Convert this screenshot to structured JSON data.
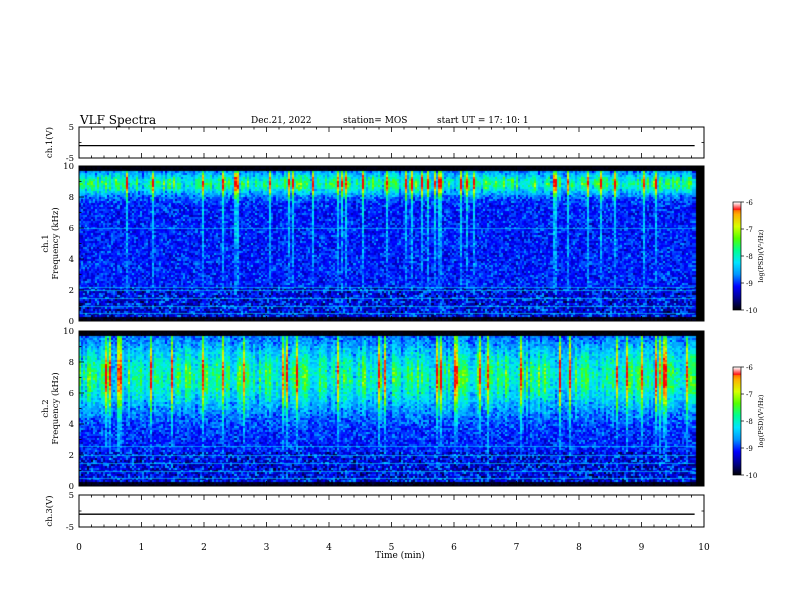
{
  "header": {
    "title": "VLF Spectra",
    "date": "Dec.21, 2022",
    "station": "station= MOS",
    "start_ut": "start  UT =   17: 10: 1"
  },
  "colors": {
    "colormap": [
      "#000000",
      "#00008b",
      "#0000ff",
      "#0096ff",
      "#00e5ff",
      "#00ff90",
      "#55ff00",
      "#d8ff00",
      "#ffb000",
      "#ff0000",
      "#ffffff"
    ],
    "trace": "#000000",
    "harmonic_lines": "#00e5ff"
  },
  "chart_data": [
    {
      "name": "ch1-voltage",
      "type": "line",
      "ylabel": "ch.1(V)",
      "ylim": [
        -5,
        5
      ],
      "yticks": [
        "5",
        "-5"
      ],
      "x": [
        0,
        9.85
      ],
      "y": [
        -1,
        -1
      ]
    },
    {
      "name": "ch1-spectrogram",
      "type": "heatmap",
      "ylabel_line1": "ch.1",
      "ylabel_line2": "Frequency (kHz)",
      "ylim": [
        0,
        10
      ],
      "yticks": [
        "0",
        "2",
        "4",
        "6",
        "8",
        "10"
      ],
      "xlim": [
        0,
        10
      ],
      "data_extent_min": 9.85,
      "band_center_khz": 8.8,
      "band_halfwidth_khz": 0.5,
      "harmonic_lines_khz": [
        0.5,
        1.0,
        1.5,
        2.0,
        2.2,
        6.0
      ],
      "colorbar": {
        "label": "log(PSD)(V²/Hz)",
        "ticks": [
          "-6",
          "-7",
          "-8",
          "-9",
          "-10"
        ],
        "range": [
          -10,
          -6
        ]
      }
    },
    {
      "name": "ch2-spectrogram",
      "type": "heatmap",
      "ylabel_line1": "ch.2",
      "ylabel_line2": "Frequency (kHz)",
      "ylim": [
        0,
        10
      ],
      "yticks": [
        "0",
        "2",
        "4",
        "6",
        "8",
        "10"
      ],
      "xlim": [
        0,
        10
      ],
      "data_extent_min": 9.85,
      "band_center_khz": 7.0,
      "band_halfwidth_khz": 1.5,
      "harmonic_lines_khz": [
        0.5,
        1.0,
        1.5,
        2.0,
        2.6
      ],
      "colorbar": {
        "label": "log(PSD)(V²/Hz)",
        "ticks": [
          "-6",
          "-7",
          "-8",
          "-9",
          "-10"
        ],
        "range": [
          -10,
          -6
        ]
      }
    },
    {
      "name": "ch3-voltage",
      "type": "line",
      "ylabel": "ch.3(V)",
      "ylim": [
        -5,
        5
      ],
      "yticks": [
        "5",
        "-5"
      ],
      "x": [
        0,
        9.85
      ],
      "y": [
        -1,
        -1
      ]
    }
  ],
  "x_axis": {
    "label": "Time (min)",
    "ticks": [
      "0",
      "1",
      "2",
      "3",
      "4",
      "5",
      "6",
      "7",
      "8",
      "9",
      "10"
    ],
    "range": [
      0,
      10
    ]
  }
}
